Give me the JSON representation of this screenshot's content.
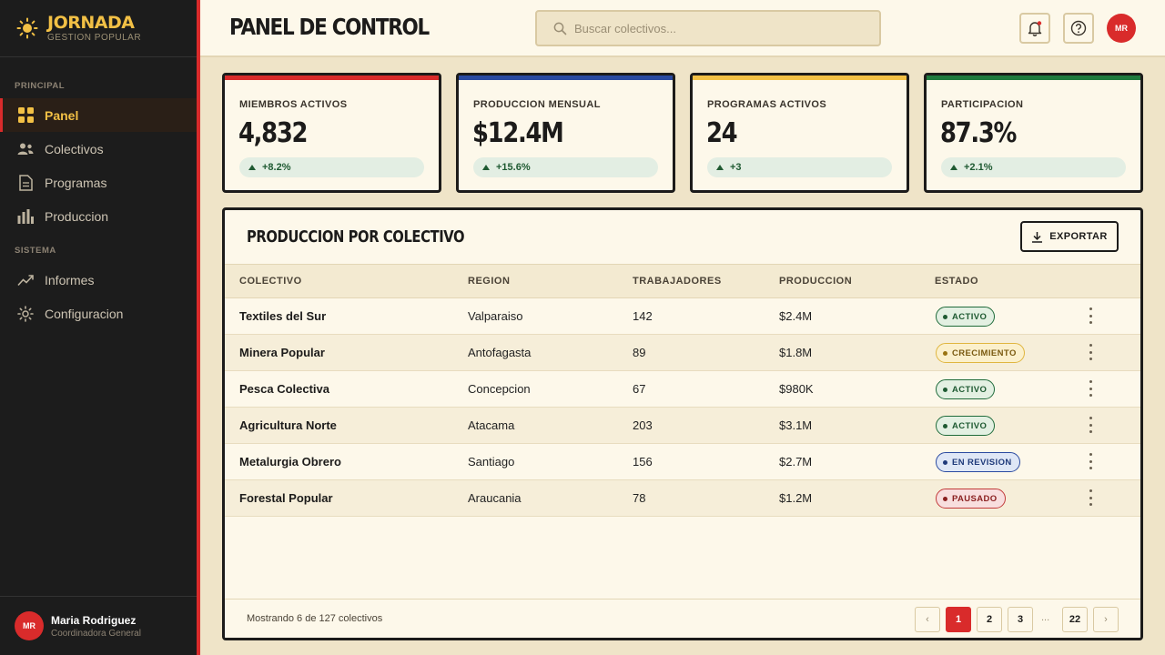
{
  "brand": {
    "name": "JORNADA",
    "subtitle": "GESTION POPULAR"
  },
  "sidebar": {
    "sections": [
      {
        "label": "PRINCIPAL"
      },
      {
        "label": "SISTEMA"
      }
    ],
    "items": [
      {
        "label": "Panel",
        "icon": "grid-icon",
        "active": true
      },
      {
        "label": "Colectivos",
        "icon": "users-icon"
      },
      {
        "label": "Programas",
        "icon": "document-icon"
      },
      {
        "label": "Produccion",
        "icon": "bar-chart-icon"
      },
      {
        "label": "Informes",
        "icon": "trend-icon"
      },
      {
        "label": "Configuracion",
        "icon": "gear-icon"
      }
    ],
    "user": {
      "initials": "MR",
      "name": "Maria Rodriguez",
      "role": "Coordinadora General"
    }
  },
  "header": {
    "title": "PANEL DE CONTROL",
    "search_placeholder": "Buscar colectivos...",
    "avatar_initials": "MR"
  },
  "stats": [
    {
      "label": "MIEMBROS ACTIVOS",
      "value": "4,832",
      "delta": "+8.2%",
      "accent": "#d92b2b"
    },
    {
      "label": "PRODUCCION MENSUAL",
      "value": "$12.4M",
      "delta": "+15.6%",
      "accent": "#2a4aa0"
    },
    {
      "label": "PROGRAMAS ACTIVOS",
      "value": "24",
      "delta": "+3",
      "accent": "#f2c045"
    },
    {
      "label": "PARTICIPACION",
      "value": "87.3%",
      "delta": "+2.1%",
      "accent": "#1f7a3e"
    }
  ],
  "table": {
    "title": "PRODUCCION POR COLECTIVO",
    "export_label": "EXPORTAR",
    "columns": [
      "COLECTIVO",
      "REGION",
      "TRABAJADORES",
      "PRODUCCION",
      "ESTADO"
    ],
    "rows": [
      {
        "name": "Textiles del Sur",
        "region": "Valparaiso",
        "workers": "142",
        "production": "$2.4M",
        "status": "ACTIVO",
        "status_color": "green"
      },
      {
        "name": "Minera Popular",
        "region": "Antofagasta",
        "workers": "89",
        "production": "$1.8M",
        "status": "CRECIMIENTO",
        "status_color": "yellow"
      },
      {
        "name": "Pesca Colectiva",
        "region": "Concepcion",
        "workers": "67",
        "production": "$980K",
        "status": "ACTIVO",
        "status_color": "green"
      },
      {
        "name": "Agricultura Norte",
        "region": "Atacama",
        "workers": "203",
        "production": "$3.1M",
        "status": "ACTIVO",
        "status_color": "green"
      },
      {
        "name": "Metalurgia Obrero",
        "region": "Santiago",
        "workers": "156",
        "production": "$2.7M",
        "status": "EN REVISION",
        "status_color": "blue"
      },
      {
        "name": "Forestal Popular",
        "region": "Araucania",
        "workers": "78",
        "production": "$1.2M",
        "status": "PAUSADO",
        "status_color": "red"
      }
    ],
    "footer_text": "Mostrando 6 de 127 colectivos",
    "pagination": {
      "prev": "‹",
      "pages": [
        "1",
        "2",
        "3"
      ],
      "ellipsis": "...",
      "last": "22",
      "next": "›",
      "current": "1"
    }
  }
}
